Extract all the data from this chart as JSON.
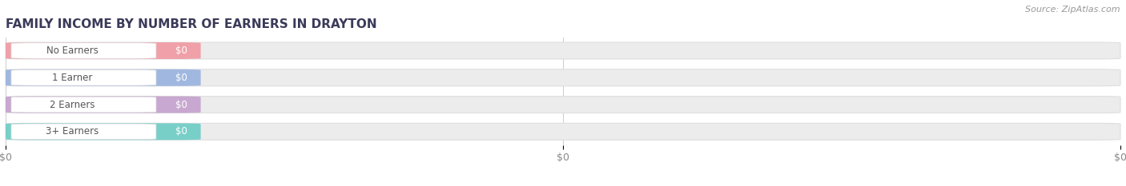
{
  "title": "FAMILY INCOME BY NUMBER OF EARNERS IN DRAYTON",
  "source": "Source: ZipAtlas.com",
  "categories": [
    "No Earners",
    "1 Earner",
    "2 Earners",
    "3+ Earners"
  ],
  "values": [
    0,
    0,
    0,
    0
  ],
  "bar_colors": [
    "#f0a0a8",
    "#a0b8e0",
    "#c8a8d0",
    "#78cfc8"
  ],
  "bar_track_color": "#ececec",
  "bar_border_color": "#dedede",
  "value_label": "$0",
  "background_color": "#ffffff",
  "title_color": "#3a3a5a",
  "tick_label_color": "#888888",
  "source_color": "#999999",
  "white_pill_color": "#ffffff",
  "label_text_color": "#555555"
}
